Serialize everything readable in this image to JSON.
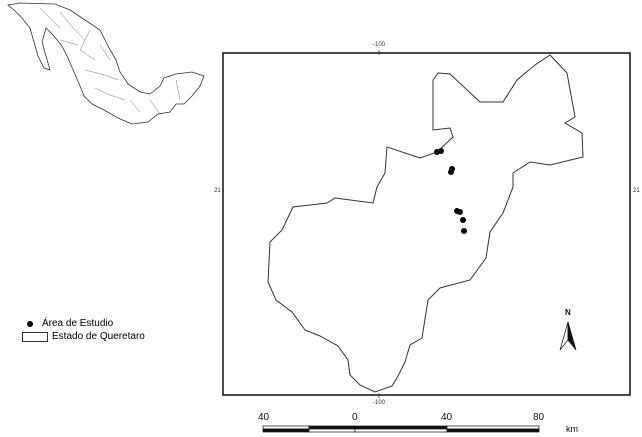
{
  "map": {
    "graticule": {
      "lon_label_top": "-100",
      "lon_label_bottom": "-100",
      "lat_label_left": "21",
      "lat_label_right": "21"
    },
    "legend": [
      {
        "symbol": "dot",
        "label": "Área de Estudio"
      },
      {
        "symbol": "box",
        "label": "Estado de Queretaro"
      }
    ],
    "north_arrow": "N",
    "scale_bar": {
      "labels": [
        "40",
        "0",
        "40",
        "80"
      ],
      "unit": "km"
    },
    "colors": {
      "outline": "#333333",
      "points": "#000000",
      "background": "#ffffff"
    }
  }
}
